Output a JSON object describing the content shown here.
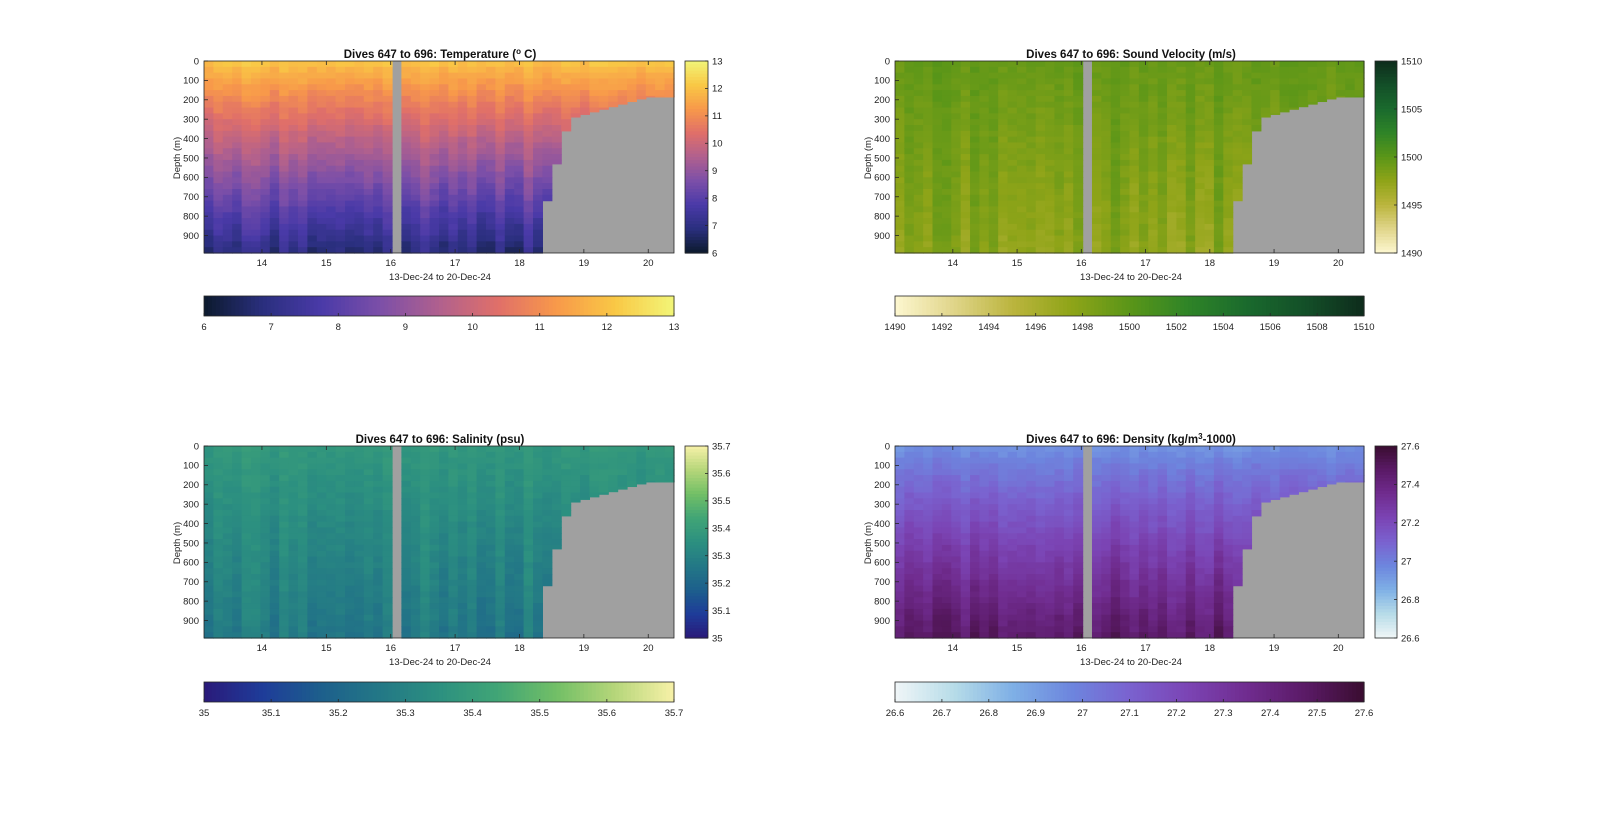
{
  "figure": {
    "background": "#ffffff",
    "no_data_color": "#a0a0a0"
  },
  "chart_data": [
    {
      "id": "temperature",
      "type": "heatmap",
      "title": "Dives 647 to 696: Temperature (",
      "title_sup": "o",
      "title_after": " C)",
      "xlabel": "13-Dec-24 to 20-Dec-24",
      "ylabel": "Depth (m)",
      "x_ticks": [
        "14",
        "15",
        "16",
        "17",
        "18",
        "19",
        "20"
      ],
      "y_ticks": [
        "0",
        "100",
        "200",
        "300",
        "400",
        "500",
        "600",
        "700",
        "800",
        "900"
      ],
      "xlim": [
        13.1,
        20.4
      ],
      "ylim": [
        0,
        990
      ],
      "colorbar_ticks": [
        "6",
        "7",
        "8",
        "9",
        "10",
        "11",
        "12",
        "13"
      ],
      "horizontal_colorbar_ticks": [
        "6",
        "7",
        "8",
        "9",
        "10",
        "11",
        "12",
        "13"
      ],
      "colormap": [
        "#0c1a2d",
        "#2a2f7e",
        "#4a3aa8",
        "#7c4fa8",
        "#b0608e",
        "#e06f69",
        "#f8994a",
        "#f9c845",
        "#f2f578"
      ],
      "value_range": [
        6,
        13
      ],
      "profile_surface_value": 12.0,
      "profile_bottom_value": 6.8
    },
    {
      "id": "sound_velocity",
      "type": "heatmap",
      "title": "Dives 647 to 696: Sound Velocity (m/s)",
      "xlabel": "13-Dec-24 to 20-Dec-24",
      "ylabel": "Depth (m)",
      "x_ticks": [
        "14",
        "15",
        "16",
        "17",
        "18",
        "19",
        "20"
      ],
      "y_ticks": [
        "0",
        "100",
        "200",
        "300",
        "400",
        "500",
        "600",
        "700",
        "800",
        "900"
      ],
      "xlim": [
        13.1,
        20.4
      ],
      "ylim": [
        0,
        990
      ],
      "colorbar_ticks": [
        "1490",
        "1495",
        "1500",
        "1505",
        "1510"
      ],
      "horizontal_colorbar_ticks": [
        "1490",
        "1492",
        "1494",
        "1496",
        "1498",
        "1500",
        "1502",
        "1504",
        "1506",
        "1508",
        "1510"
      ],
      "colormap": [
        "#fdf7d0",
        "#e0d58a",
        "#bbb53e",
        "#8fa418",
        "#5a9618",
        "#2f8427",
        "#1a6a2d",
        "#134f28",
        "#0e2c1c"
      ],
      "value_range": [
        1490,
        1510
      ],
      "profile_surface_value": 1499.5,
      "profile_bottom_value": 1497.5
    },
    {
      "id": "salinity",
      "type": "heatmap",
      "title": "Dives 647 to 696: Salinity (psu)",
      "xlabel": "13-Dec-24 to 20-Dec-24",
      "ylabel": "Depth (m)",
      "x_ticks": [
        "14",
        "15",
        "16",
        "17",
        "18",
        "19",
        "20"
      ],
      "y_ticks": [
        "0",
        "100",
        "200",
        "300",
        "400",
        "500",
        "600",
        "700",
        "800",
        "900"
      ],
      "xlim": [
        13.1,
        20.4
      ],
      "ylim": [
        0,
        990
      ],
      "colorbar_ticks": [
        "35",
        "35.1",
        "35.2",
        "35.3",
        "35.4",
        "35.5",
        "35.6",
        "35.7"
      ],
      "horizontal_colorbar_ticks": [
        "35",
        "35.1",
        "35.2",
        "35.3",
        "35.4",
        "35.5",
        "35.6",
        "35.7"
      ],
      "colormap": [
        "#2a1a7a",
        "#1e3c99",
        "#1d5f8c",
        "#237886",
        "#2c9080",
        "#41a576",
        "#72bf66",
        "#b6d67a",
        "#f7f1a8"
      ],
      "value_range": [
        35,
        35.7
      ],
      "profile_surface_value": 35.38,
      "profile_bottom_value": 35.26
    },
    {
      "id": "density",
      "type": "heatmap",
      "title": "Dives 647 to 696: Density (kg/m",
      "title_sup": "3",
      "title_after": "-1000)",
      "xlabel": "13-Dec-24 to 20-Dec-24",
      "ylabel": "Depth (m)",
      "x_ticks": [
        "14",
        "15",
        "16",
        "17",
        "18",
        "19",
        "20"
      ],
      "y_ticks": [
        "0",
        "100",
        "200",
        "300",
        "400",
        "500",
        "600",
        "700",
        "800",
        "900"
      ],
      "xlim": [
        13.1,
        20.4
      ],
      "ylim": [
        0,
        990
      ],
      "colorbar_ticks": [
        "26.6",
        "26.8",
        "27",
        "27.2",
        "27.4",
        "27.6"
      ],
      "horizontal_colorbar_ticks": [
        "26.6",
        "26.7",
        "26.8",
        "26.9",
        "27",
        "27.1",
        "27.2",
        "27.3",
        "27.4",
        "27.5",
        "27.6"
      ],
      "colormap": [
        "#f0f6f7",
        "#b7dce8",
        "#7fb0e6",
        "#6d86de",
        "#7a62cf",
        "#7b44b4",
        "#702c8f",
        "#5a1a66",
        "#3a0d30"
      ],
      "value_range": [
        26.6,
        27.6
      ],
      "profile_surface_value": 26.95,
      "profile_bottom_value": 27.48
    }
  ]
}
